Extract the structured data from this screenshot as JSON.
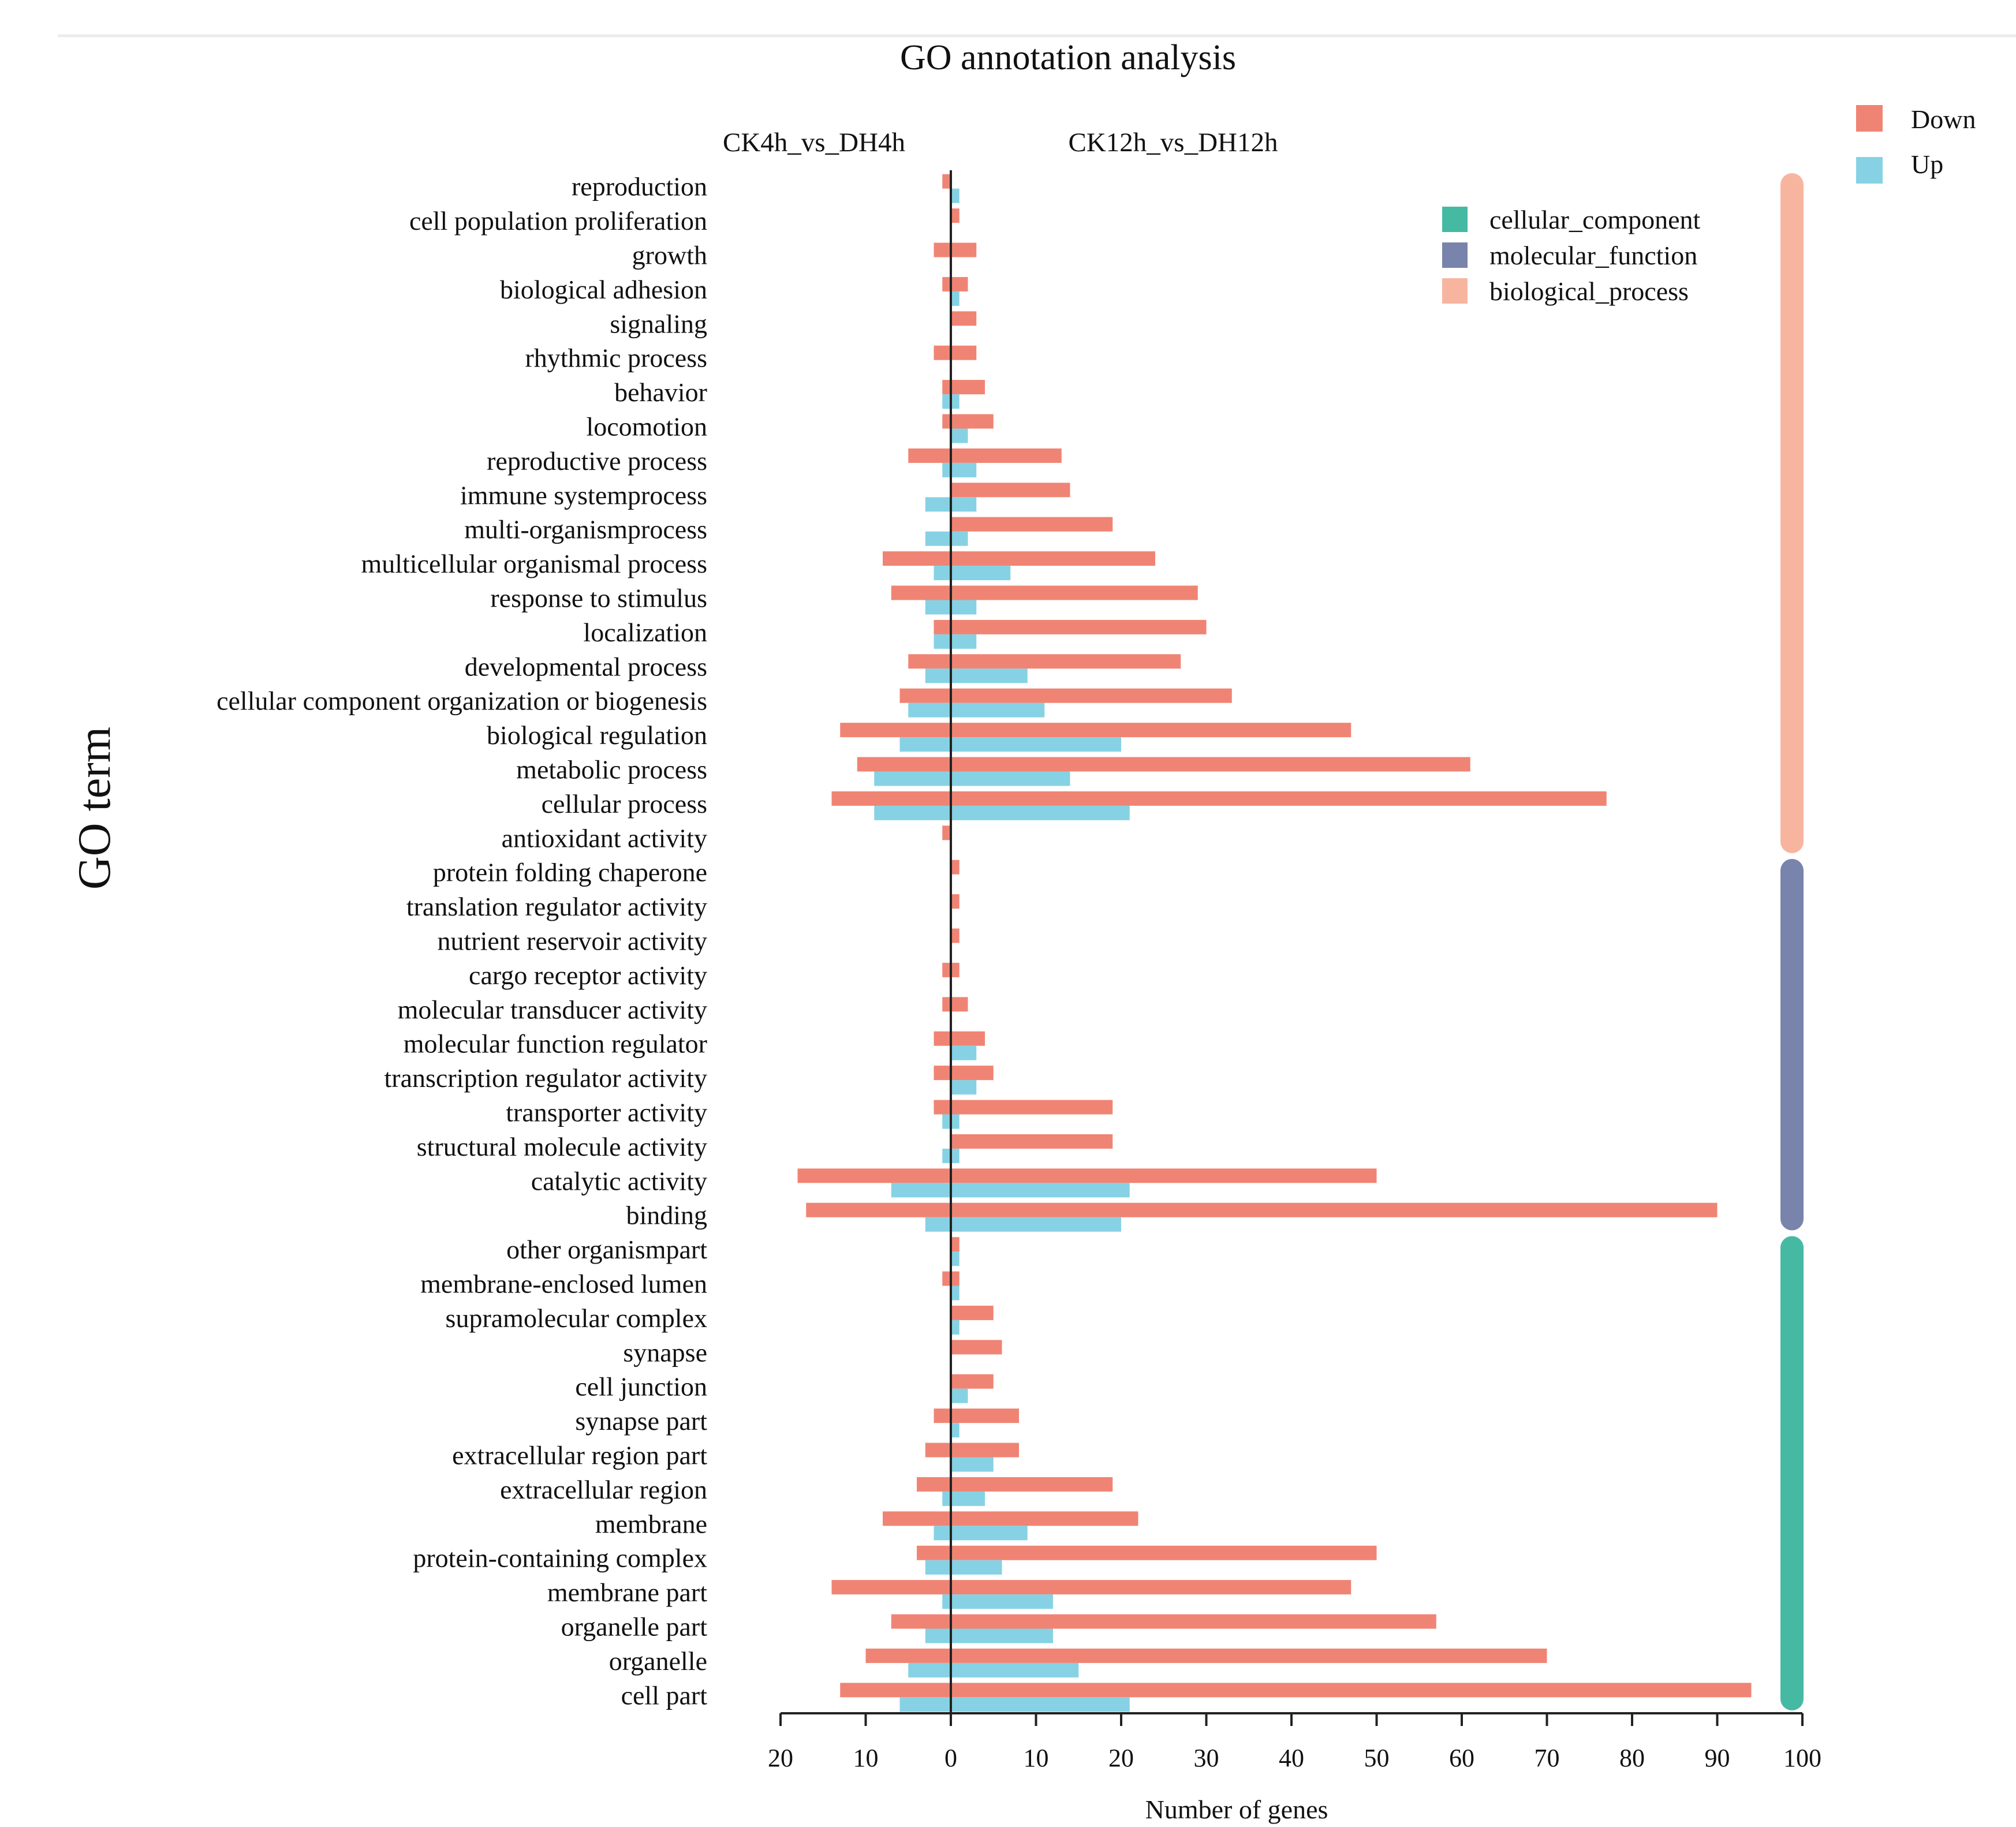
{
  "chart_data": {
    "type": "bar",
    "title": "GO annotation analysis",
    "xlabel": "Number of genes",
    "ylabel": "GO term",
    "panels": [
      {
        "name": "CK4h_vs_DH4h",
        "xlim": [
          20,
          0
        ],
        "ticks": [
          20,
          10,
          0
        ]
      },
      {
        "name": "CK12h_vs_DH12h",
        "xlim": [
          0,
          100
        ],
        "ticks": [
          0,
          10,
          20,
          30,
          40,
          50,
          60,
          70,
          80,
          90,
          100
        ]
      }
    ],
    "tick_labels": [
      "20",
      "10",
      "0",
      "10",
      "20",
      "30",
      "40",
      "50",
      "60",
      "70",
      "80",
      "90",
      "100"
    ],
    "legend_direction": {
      "down_label": "Down",
      "up_label": "Up",
      "down_color": "#f08474",
      "up_color": "#86d2e4"
    },
    "legend_groups": [
      {
        "label": "cellular_component",
        "color": "#46b9a3"
      },
      {
        "label": "molecular_function",
        "color": "#7884ab"
      },
      {
        "label": "biological_process",
        "color": "#f7b5a0"
      }
    ],
    "groups": [
      {
        "name": "biological_process",
        "color": "#f7b5a0",
        "first": 0,
        "last": 19
      },
      {
        "name": "molecular_function",
        "color": "#7884ab",
        "first": 20,
        "last": 30
      },
      {
        "name": "cellular_component",
        "color": "#46b9a3",
        "first": 31,
        "last": 44
      }
    ],
    "categories": [
      "reproduction",
      "cell population proliferation",
      "growth",
      "biological adhesion",
      "signaling",
      "rhythmic process",
      "behavior",
      "locomotion",
      "reproductive process",
      "immune systemprocess",
      "multi-organismprocess",
      "multicellular organismal process",
      "response to stimulus",
      "localization",
      "developmental process",
      "cellular component organization or biogenesis",
      "biological regulation",
      "metabolic process",
      "cellular process",
      "antioxidant activity",
      "protein folding chaperone",
      "translation regulator activity",
      "nutrient reservoir activity",
      "cargo receptor activity",
      "molecular transducer activity",
      "molecular function regulator",
      "transcription regulator activity",
      "transporter activity",
      "structural molecule activity",
      "catalytic activity",
      "binding",
      "other organismpart",
      "membrane-enclosed lumen",
      "supramolecular complex",
      "synapse",
      "cell junction",
      "synapse part",
      "extracellular region part",
      "extracellular region",
      "membrane",
      "protein-containing complex",
      "membrane part",
      "organelle part",
      "organelle",
      "cell part"
    ],
    "series": [
      {
        "name": "CK4h_vs_DH4h Down",
        "values": [
          1,
          0,
          2,
          1,
          0,
          2,
          1,
          1,
          5,
          0,
          0,
          8,
          7,
          2,
          5,
          6,
          13,
          11,
          14,
          1,
          0,
          0,
          0,
          1,
          1,
          2,
          2,
          2,
          0,
          18,
          17,
          0,
          1,
          0,
          0,
          0,
          2,
          3,
          4,
          8,
          4,
          14,
          7,
          10,
          13
        ]
      },
      {
        "name": "CK4h_vs_DH4h Up",
        "values": [
          0,
          0,
          0,
          0,
          0,
          0,
          1,
          0,
          1,
          3,
          3,
          2,
          3,
          2,
          3,
          5,
          6,
          9,
          9,
          0,
          0,
          0,
          0,
          0,
          0,
          0,
          0,
          1,
          1,
          7,
          3,
          0,
          0,
          0,
          0,
          0,
          0,
          0,
          1,
          2,
          3,
          1,
          3,
          5,
          6
        ]
      },
      {
        "name": "CK12h_vs_DH12h Down",
        "values": [
          0,
          1,
          3,
          2,
          3,
          3,
          4,
          5,
          13,
          14,
          19,
          24,
          29,
          30,
          27,
          33,
          47,
          61,
          77,
          0,
          1,
          1,
          1,
          1,
          2,
          4,
          5,
          19,
          19,
          50,
          90,
          1,
          1,
          5,
          6,
          5,
          8,
          8,
          19,
          22,
          50,
          47,
          57,
          70,
          94
        ]
      },
      {
        "name": "CK12h_vs_DH12h Up",
        "values": [
          1,
          0,
          0,
          1,
          0,
          0,
          1,
          2,
          3,
          3,
          2,
          7,
          3,
          3,
          9,
          11,
          20,
          14,
          21,
          0,
          0,
          0,
          0,
          0,
          0,
          3,
          3,
          1,
          1,
          21,
          20,
          1,
          1,
          1,
          0,
          2,
          1,
          5,
          4,
          9,
          6,
          12,
          12,
          15,
          21
        ]
      }
    ]
  }
}
